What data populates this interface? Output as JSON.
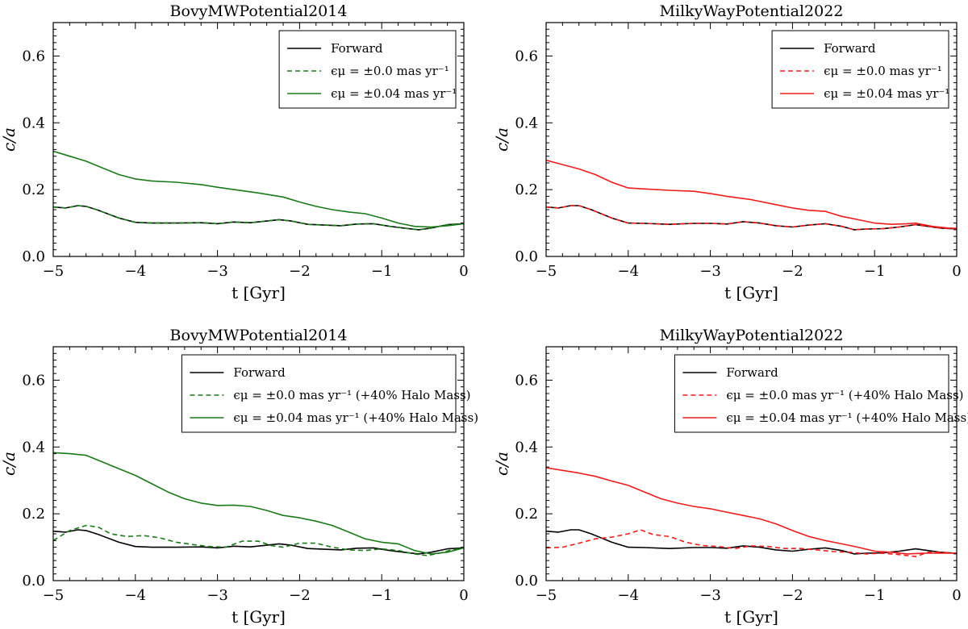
{
  "colors": {
    "forward": "#000000",
    "green": "#1a7a1a",
    "red": "#ee1c1c"
  },
  "chart_data": [
    {
      "type": "line",
      "title": "BovyMWPotential2014",
      "xlabel": "t [Gyr]",
      "ylabel": "c/a",
      "xlim": [
        -5,
        0
      ],
      "ylim": [
        0,
        0.7
      ],
      "xticks": [
        -5,
        -4,
        -3,
        -2,
        -1,
        0
      ],
      "xtick_labels": [
        "−5",
        "−4",
        "−3",
        "−2",
        "−1",
        "0"
      ],
      "yticks": [
        0,
        0.2,
        0.4,
        0.6
      ],
      "ytick_labels": [
        "0.0",
        "0.2",
        "0.4",
        "0.6"
      ],
      "legend_position": "top-right",
      "series": [
        {
          "name": "Forward",
          "color": "#000000",
          "dash": "solid",
          "x": [
            -5.0,
            -4.85,
            -4.7,
            -4.6,
            -4.45,
            -4.2,
            -4.0,
            -3.8,
            -3.5,
            -3.2,
            -3.0,
            -2.8,
            -2.6,
            -2.4,
            -2.25,
            -2.1,
            -1.9,
            -1.7,
            -1.5,
            -1.3,
            -1.1,
            -0.9,
            -0.7,
            -0.55,
            -0.4,
            -0.2,
            0.0
          ],
          "y": [
            0.148,
            0.145,
            0.152,
            0.15,
            0.138,
            0.115,
            0.102,
            0.1,
            0.1,
            0.101,
            0.098,
            0.103,
            0.101,
            0.106,
            0.11,
            0.106,
            0.096,
            0.094,
            0.092,
            0.097,
            0.098,
            0.09,
            0.084,
            0.08,
            0.085,
            0.095,
            0.098
          ]
        },
        {
          "name": "ϵμ = ±0.0 mas yr⁻¹",
          "color": "#1a7a1a",
          "dash": "dashed",
          "x": [
            -5.0,
            -4.85,
            -4.7,
            -4.6,
            -4.45,
            -4.2,
            -4.0,
            -3.8,
            -3.5,
            -3.2,
            -3.0,
            -2.8,
            -2.6,
            -2.4,
            -2.25,
            -2.1,
            -1.9,
            -1.7,
            -1.5,
            -1.3,
            -1.1,
            -0.9,
            -0.7,
            -0.55,
            -0.4,
            -0.2,
            0.0
          ],
          "y": [
            0.148,
            0.145,
            0.152,
            0.15,
            0.138,
            0.115,
            0.102,
            0.1,
            0.1,
            0.101,
            0.098,
            0.103,
            0.101,
            0.106,
            0.11,
            0.106,
            0.096,
            0.094,
            0.092,
            0.097,
            0.098,
            0.09,
            0.084,
            0.08,
            0.085,
            0.095,
            0.098
          ]
        },
        {
          "name": "ϵμ = ±0.04 mas yr⁻¹",
          "color": "#1a7a1a",
          "dash": "solid",
          "x": [
            -5.0,
            -4.8,
            -4.6,
            -4.4,
            -4.2,
            -4.0,
            -3.8,
            -3.5,
            -3.2,
            -3.0,
            -2.8,
            -2.5,
            -2.2,
            -2.0,
            -1.8,
            -1.6,
            -1.4,
            -1.2,
            -1.0,
            -0.8,
            -0.6,
            -0.4,
            -0.2,
            0.0
          ],
          "y": [
            0.315,
            0.3,
            0.285,
            0.265,
            0.245,
            0.232,
            0.226,
            0.222,
            0.215,
            0.207,
            0.2,
            0.19,
            0.178,
            0.163,
            0.15,
            0.14,
            0.133,
            0.128,
            0.115,
            0.1,
            0.09,
            0.088,
            0.092,
            0.098
          ]
        }
      ]
    },
    {
      "type": "line",
      "title": "MilkyWayPotential2022",
      "xlabel": "t [Gyr]",
      "ylabel": "c/a",
      "xlim": [
        -5,
        0
      ],
      "ylim": [
        0,
        0.7
      ],
      "xticks": [
        -5,
        -4,
        -3,
        -2,
        -1,
        0
      ],
      "xtick_labels": [
        "−5",
        "−4",
        "−3",
        "−2",
        "−1",
        "0"
      ],
      "yticks": [
        0,
        0.2,
        0.4,
        0.6
      ],
      "ytick_labels": [
        "0.0",
        "0.2",
        "0.4",
        "0.6"
      ],
      "legend_position": "top-right",
      "series": [
        {
          "name": "Forward",
          "color": "#000000",
          "dash": "solid",
          "x": [
            -5.0,
            -4.85,
            -4.7,
            -4.6,
            -4.45,
            -4.2,
            -4.0,
            -3.8,
            -3.5,
            -3.2,
            -3.0,
            -2.8,
            -2.6,
            -2.4,
            -2.2,
            -2.0,
            -1.8,
            -1.6,
            -1.4,
            -1.25,
            -1.1,
            -0.9,
            -0.7,
            -0.5,
            -0.35,
            -0.2,
            0.0
          ],
          "y": [
            0.148,
            0.145,
            0.152,
            0.152,
            0.14,
            0.115,
            0.1,
            0.099,
            0.096,
            0.099,
            0.099,
            0.097,
            0.104,
            0.1,
            0.092,
            0.088,
            0.094,
            0.098,
            0.09,
            0.08,
            0.082,
            0.083,
            0.088,
            0.095,
            0.09,
            0.085,
            0.082
          ]
        },
        {
          "name": "ϵμ = ±0.0 mas yr⁻¹",
          "color": "#ee1c1c",
          "dash": "dashed",
          "x": [
            -5.0,
            -4.85,
            -4.7,
            -4.6,
            -4.45,
            -4.2,
            -4.0,
            -3.8,
            -3.5,
            -3.2,
            -3.0,
            -2.8,
            -2.6,
            -2.4,
            -2.2,
            -2.0,
            -1.8,
            -1.6,
            -1.4,
            -1.25,
            -1.1,
            -0.9,
            -0.7,
            -0.5,
            -0.35,
            -0.2,
            0.0
          ],
          "y": [
            0.148,
            0.145,
            0.152,
            0.152,
            0.14,
            0.115,
            0.1,
            0.099,
            0.096,
            0.099,
            0.099,
            0.097,
            0.104,
            0.1,
            0.092,
            0.088,
            0.094,
            0.098,
            0.09,
            0.08,
            0.082,
            0.083,
            0.088,
            0.095,
            0.09,
            0.085,
            0.082
          ]
        },
        {
          "name": "ϵμ = ±0.04 mas yr⁻¹",
          "color": "#ee1c1c",
          "dash": "solid",
          "x": [
            -5.0,
            -4.8,
            -4.6,
            -4.4,
            -4.2,
            -4.0,
            -3.8,
            -3.5,
            -3.2,
            -3.0,
            -2.8,
            -2.5,
            -2.2,
            -2.0,
            -1.8,
            -1.6,
            -1.4,
            -1.2,
            -1.0,
            -0.8,
            -0.6,
            -0.5,
            -0.3,
            -0.1,
            0.0
          ],
          "y": [
            0.288,
            0.275,
            0.262,
            0.245,
            0.222,
            0.205,
            0.202,
            0.198,
            0.195,
            0.188,
            0.18,
            0.17,
            0.155,
            0.145,
            0.138,
            0.135,
            0.12,
            0.11,
            0.1,
            0.096,
            0.098,
            0.1,
            0.09,
            0.085,
            0.084
          ]
        }
      ]
    },
    {
      "type": "line",
      "title": "BovyMWPotential2014",
      "xlabel": "t [Gyr]",
      "ylabel": "c/a",
      "xlim": [
        -5,
        0
      ],
      "ylim": [
        0,
        0.7
      ],
      "xticks": [
        -5,
        -4,
        -3,
        -2,
        -1,
        0
      ],
      "xtick_labels": [
        "−5",
        "−4",
        "−3",
        "−2",
        "−1",
        "0"
      ],
      "yticks": [
        0,
        0.2,
        0.4,
        0.6
      ],
      "ytick_labels": [
        "0.0",
        "0.2",
        "0.4",
        "0.6"
      ],
      "legend_position": "top-right",
      "series": [
        {
          "name": "Forward",
          "color": "#000000",
          "dash": "solid",
          "x": [
            -5.0,
            -4.85,
            -4.7,
            -4.6,
            -4.45,
            -4.2,
            -4.0,
            -3.8,
            -3.5,
            -3.2,
            -3.0,
            -2.8,
            -2.6,
            -2.4,
            -2.25,
            -2.1,
            -1.9,
            -1.7,
            -1.5,
            -1.3,
            -1.1,
            -0.9,
            -0.7,
            -0.55,
            -0.4,
            -0.2,
            0.0
          ],
          "y": [
            0.148,
            0.145,
            0.152,
            0.15,
            0.138,
            0.115,
            0.102,
            0.1,
            0.1,
            0.101,
            0.098,
            0.103,
            0.101,
            0.106,
            0.11,
            0.106,
            0.096,
            0.094,
            0.092,
            0.097,
            0.098,
            0.09,
            0.084,
            0.08,
            0.085,
            0.095,
            0.098
          ]
        },
        {
          "name": "ϵμ = ±0.0 mas yr⁻¹ (+40% Halo Mass)",
          "color": "#1a7a1a",
          "dash": "dashed",
          "x": [
            -5.0,
            -4.8,
            -4.6,
            -4.45,
            -4.3,
            -4.1,
            -3.9,
            -3.7,
            -3.5,
            -3.3,
            -3.1,
            -2.9,
            -2.7,
            -2.5,
            -2.35,
            -2.2,
            -2.0,
            -1.8,
            -1.6,
            -1.4,
            -1.2,
            -1.0,
            -0.8,
            -0.6,
            -0.45,
            -0.3,
            -0.15,
            0.0
          ],
          "y": [
            0.12,
            0.15,
            0.165,
            0.16,
            0.14,
            0.132,
            0.135,
            0.128,
            0.115,
            0.108,
            0.102,
            0.1,
            0.118,
            0.118,
            0.105,
            0.1,
            0.112,
            0.112,
            0.1,
            0.092,
            0.09,
            0.095,
            0.09,
            0.08,
            0.075,
            0.082,
            0.092,
            0.098
          ]
        },
        {
          "name": "ϵμ = ±0.04 mas yr⁻¹ (+40% Halo Mass)",
          "color": "#1a7a1a",
          "dash": "solid",
          "x": [
            -5.0,
            -4.8,
            -4.6,
            -4.4,
            -4.2,
            -4.0,
            -3.8,
            -3.6,
            -3.4,
            -3.2,
            -3.0,
            -2.8,
            -2.6,
            -2.4,
            -2.2,
            -2.0,
            -1.8,
            -1.6,
            -1.4,
            -1.2,
            -1.0,
            -0.8,
            -0.6,
            -0.4,
            -0.2,
            0.0
          ],
          "y": [
            0.383,
            0.38,
            0.375,
            0.355,
            0.335,
            0.315,
            0.29,
            0.265,
            0.245,
            0.232,
            0.225,
            0.226,
            0.222,
            0.21,
            0.195,
            0.188,
            0.178,
            0.165,
            0.145,
            0.125,
            0.115,
            0.11,
            0.09,
            0.08,
            0.085,
            0.098
          ]
        }
      ]
    },
    {
      "type": "line",
      "title": "MilkyWayPotential2022",
      "xlabel": "t [Gyr]",
      "ylabel": "c/a",
      "xlim": [
        -5,
        0
      ],
      "ylim": [
        0,
        0.7
      ],
      "xticks": [
        -5,
        -4,
        -3,
        -2,
        -1,
        0
      ],
      "xtick_labels": [
        "−5",
        "−4",
        "−3",
        "−2",
        "−1",
        "0"
      ],
      "yticks": [
        0,
        0.2,
        0.4,
        0.6
      ],
      "ytick_labels": [
        "0.0",
        "0.2",
        "0.4",
        "0.6"
      ],
      "legend_position": "top-right",
      "series": [
        {
          "name": "Forward",
          "color": "#000000",
          "dash": "solid",
          "x": [
            -5.0,
            -4.85,
            -4.7,
            -4.6,
            -4.45,
            -4.2,
            -4.0,
            -3.8,
            -3.5,
            -3.2,
            -3.0,
            -2.8,
            -2.6,
            -2.4,
            -2.2,
            -2.0,
            -1.8,
            -1.6,
            -1.4,
            -1.25,
            -1.1,
            -0.9,
            -0.7,
            -0.5,
            -0.35,
            -0.2,
            0.0
          ],
          "y": [
            0.148,
            0.145,
            0.152,
            0.152,
            0.14,
            0.115,
            0.1,
            0.099,
            0.096,
            0.099,
            0.099,
            0.097,
            0.104,
            0.1,
            0.092,
            0.088,
            0.094,
            0.098,
            0.09,
            0.08,
            0.082,
            0.083,
            0.088,
            0.095,
            0.09,
            0.085,
            0.082
          ]
        },
        {
          "name": "ϵμ = ±0.0 mas yr⁻¹ (+40% Halo Mass)",
          "color": "#ee1c1c",
          "dash": "dashed",
          "x": [
            -5.0,
            -4.8,
            -4.6,
            -4.4,
            -4.2,
            -4.0,
            -3.85,
            -3.7,
            -3.5,
            -3.3,
            -3.1,
            -2.9,
            -2.7,
            -2.5,
            -2.3,
            -2.1,
            -1.9,
            -1.7,
            -1.5,
            -1.3,
            -1.1,
            -0.9,
            -0.7,
            -0.5,
            -0.35,
            -0.2,
            0.0
          ],
          "y": [
            0.098,
            0.1,
            0.112,
            0.125,
            0.13,
            0.14,
            0.152,
            0.138,
            0.132,
            0.115,
            0.105,
            0.102,
            0.096,
            0.104,
            0.102,
            0.096,
            0.096,
            0.092,
            0.087,
            0.085,
            0.08,
            0.082,
            0.078,
            0.072,
            0.085,
            0.085,
            0.082
          ]
        },
        {
          "name": "ϵμ = ±0.04 mas yr⁻¹ (+40% Halo Mass)",
          "color": "#ee1c1c",
          "dash": "solid",
          "x": [
            -5.0,
            -4.8,
            -4.6,
            -4.4,
            -4.2,
            -4.0,
            -3.8,
            -3.6,
            -3.4,
            -3.2,
            -3.0,
            -2.8,
            -2.6,
            -2.4,
            -2.2,
            -2.0,
            -1.8,
            -1.6,
            -1.4,
            -1.2,
            -1.0,
            -0.8,
            -0.6,
            -0.4,
            -0.2,
            0.0
          ],
          "y": [
            0.338,
            0.33,
            0.322,
            0.312,
            0.298,
            0.285,
            0.265,
            0.245,
            0.232,
            0.222,
            0.215,
            0.205,
            0.195,
            0.185,
            0.17,
            0.15,
            0.132,
            0.12,
            0.11,
            0.1,
            0.088,
            0.085,
            0.08,
            0.082,
            0.082,
            0.082
          ]
        }
      ]
    }
  ]
}
